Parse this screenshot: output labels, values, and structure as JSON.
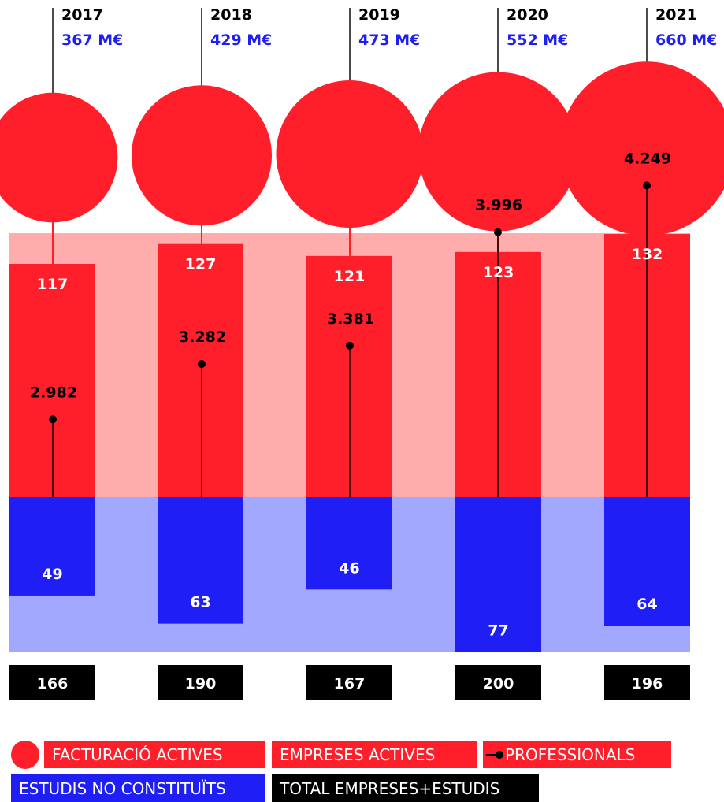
{
  "colors": {
    "revenue": "#ff1f2b",
    "companies": "#ff1f2b",
    "companies_bg": "#ffacac",
    "studios": "#1e1ef5",
    "studios_bg": "#a3a8ff",
    "professionals": "#000000",
    "total_box": "#000000",
    "year_text": "#000000",
    "revenue_text": "#1e1ef5"
  },
  "chart_data": {
    "type": "bar",
    "categories": [
      "2017",
      "2018",
      "2019",
      "2020",
      "2021"
    ],
    "series": [
      {
        "name": "FACTURACIÓ ACTIVES",
        "values": [
          367,
          429,
          473,
          552,
          660
        ],
        "labels": [
          "367 M€",
          "429 M€",
          "473 M€",
          "552 M€",
          "660 M€"
        ]
      },
      {
        "name": "EMPRESES ACTIVES",
        "values": [
          117,
          127,
          121,
          123,
          132
        ],
        "labels": [
          "117",
          "127",
          "121",
          "123",
          "132"
        ]
      },
      {
        "name": "PROFESSIONALS",
        "values": [
          2982,
          3282,
          3381,
          3996,
          4249
        ],
        "labels": [
          "2.982",
          "3.282",
          "3.381",
          "3.996",
          "4.249"
        ]
      },
      {
        "name": "ESTUDIS NO CONSTITUÏTS",
        "values": [
          49,
          63,
          46,
          77,
          64
        ],
        "labels": [
          "49",
          "63",
          "46",
          "77",
          "64"
        ]
      },
      {
        "name": "TOTAL EMPRESES+ESTUDIS",
        "values": [
          166,
          190,
          167,
          200,
          196
        ],
        "labels": [
          "166",
          "190",
          "167",
          "200",
          "196"
        ]
      }
    ]
  },
  "legend": {
    "revenue": "FACTURACIÓ ACTIVES",
    "companies": "EMPRESES ACTIVES",
    "professionals": "PROFESSIONALS",
    "studios": "ESTUDIS NO CONSTITUÏTS",
    "total": "TOTAL EMPRESES+ESTUDIS"
  }
}
